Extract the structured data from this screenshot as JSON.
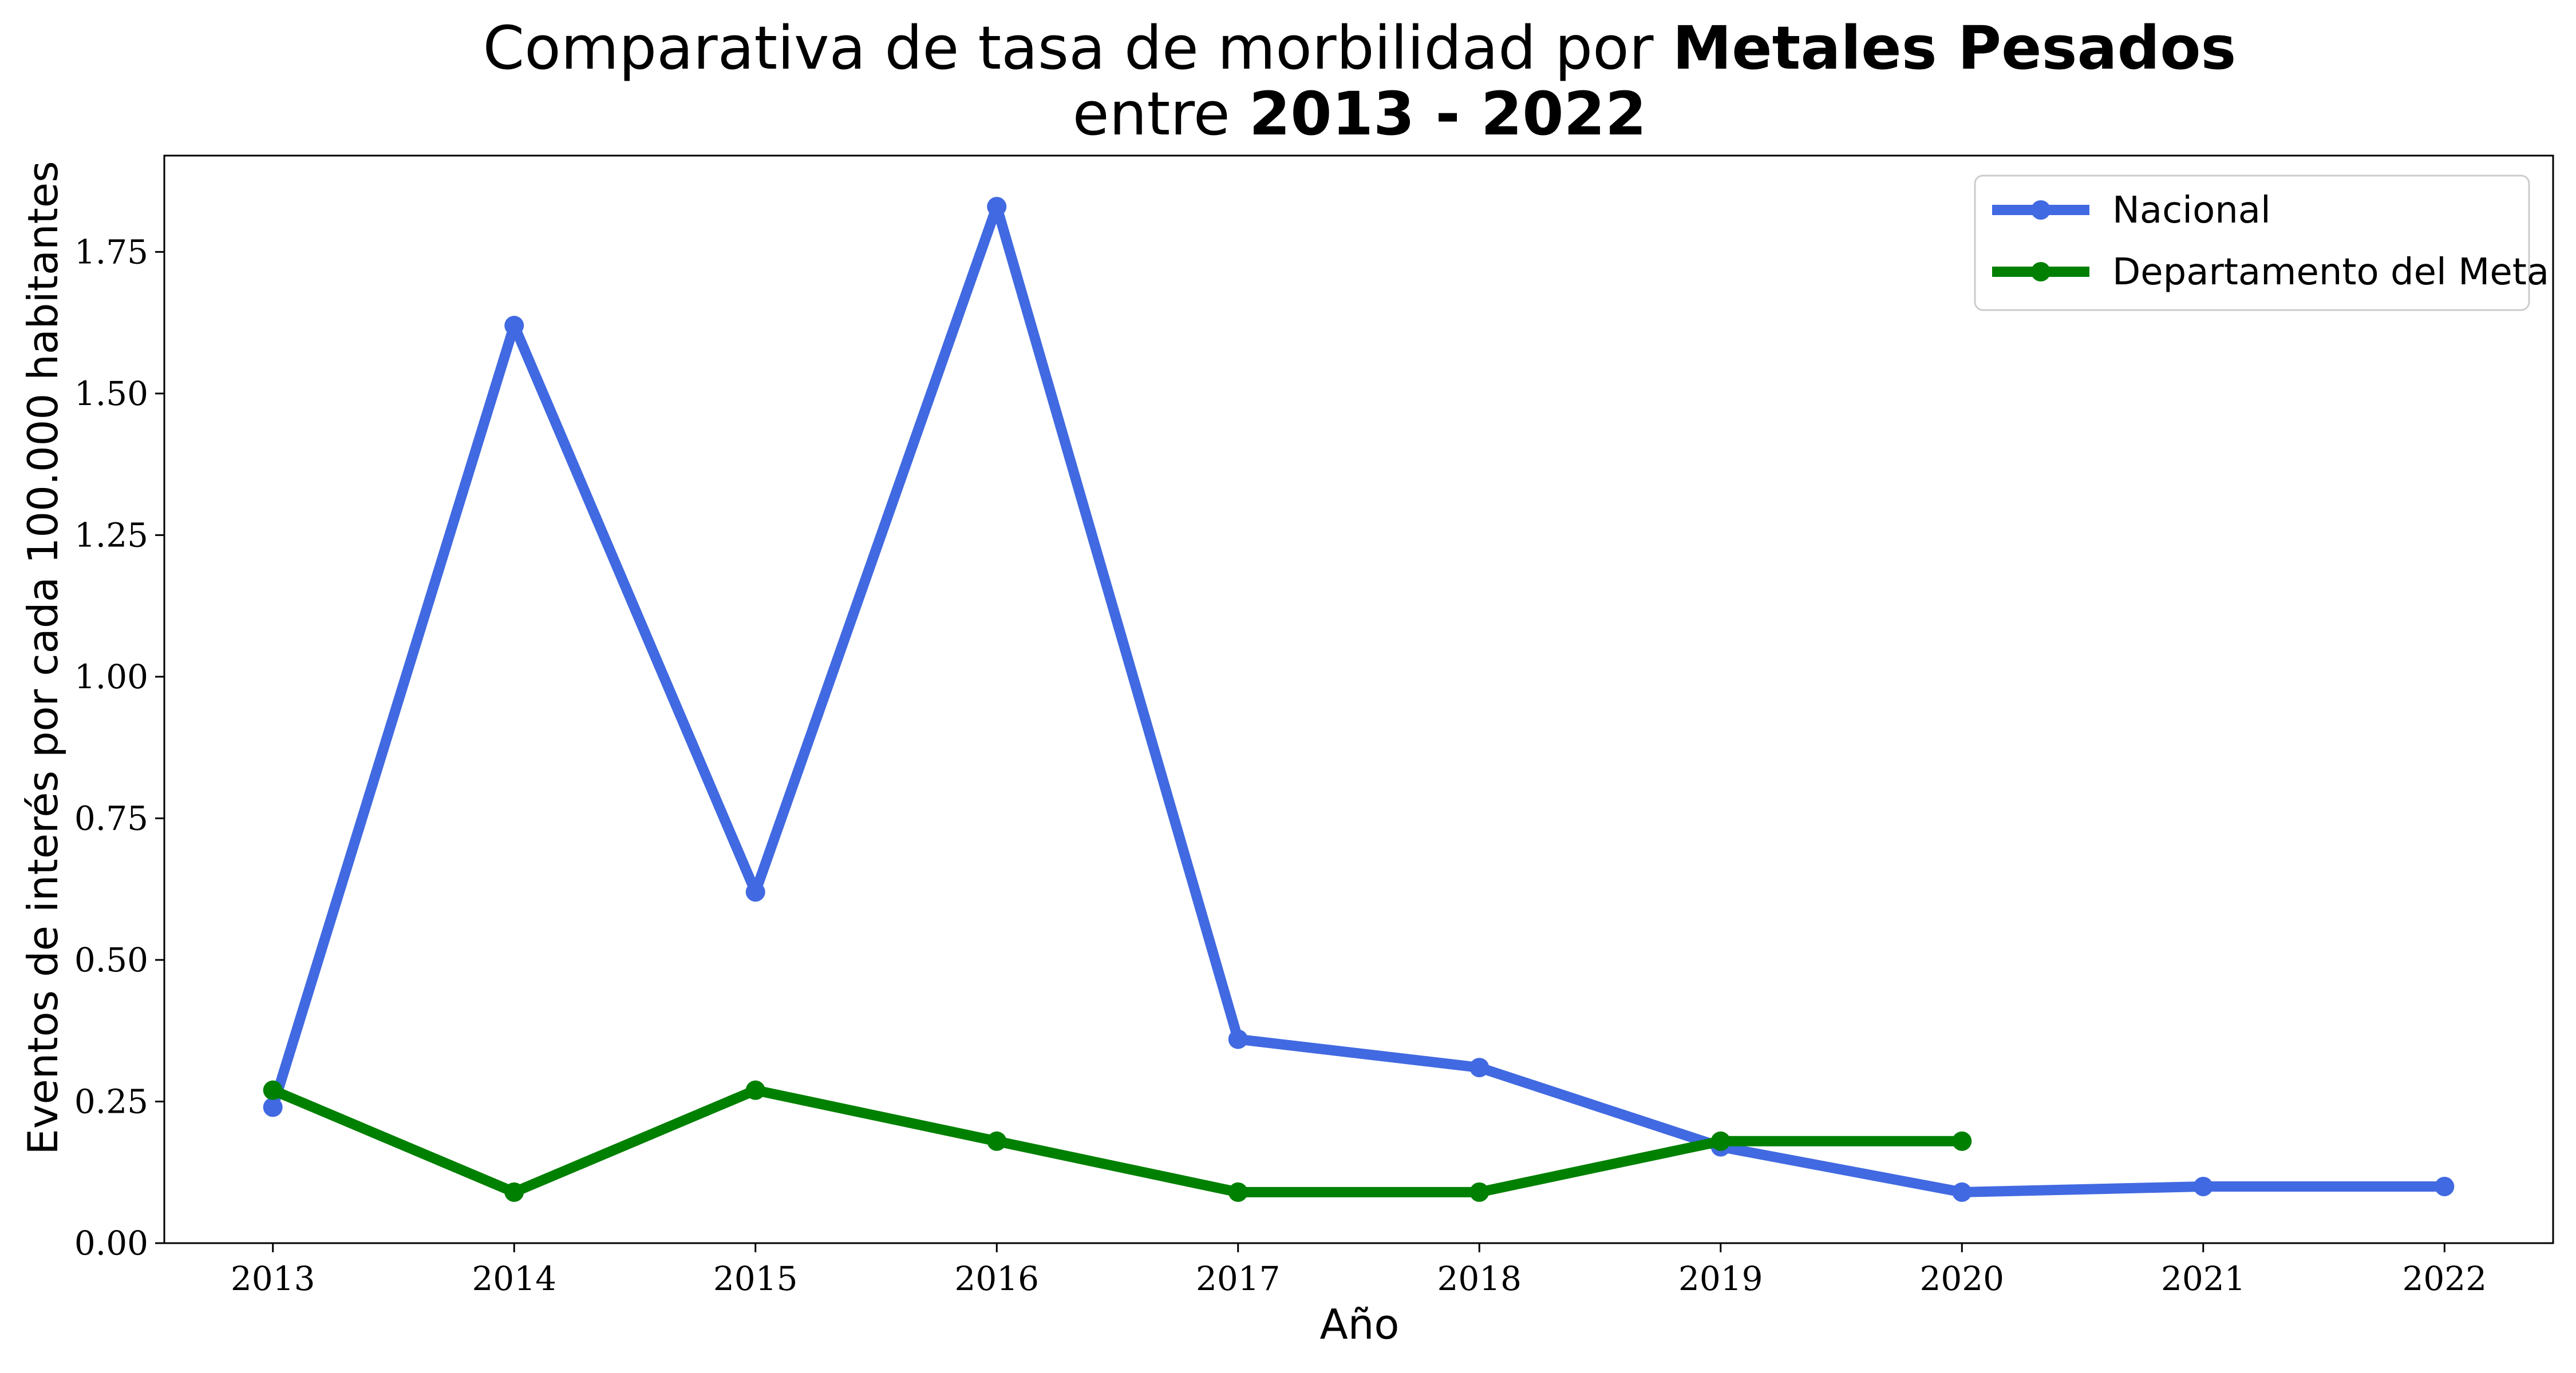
{
  "chart_data": {
    "type": "line",
    "title": {
      "line1_prefix": "Comparativa de tasa de morbilidad por ",
      "line1_bold": "Metales Pesados",
      "line2_prefix": "entre ",
      "line2_bold": "2013 - 2022"
    },
    "xlabel": "Año",
    "ylabel": "Eventos de interés por cada 100.000 habitantes",
    "x": [
      "2013",
      "2014",
      "2015",
      "2016",
      "2017",
      "2018",
      "2019",
      "2020",
      "2021",
      "2022"
    ],
    "ylim": [
      0,
      1.92
    ],
    "yticks": [
      "0.00",
      "0.25",
      "0.50",
      "0.75",
      "1.00",
      "1.25",
      "1.50",
      "1.75"
    ],
    "legend_position": "top-right",
    "grid": false,
    "series": [
      {
        "name": "Nacional",
        "color": "#4169e1",
        "values": [
          0.24,
          1.62,
          0.62,
          1.83,
          0.36,
          0.31,
          0.17,
          0.09,
          0.1,
          0.1
        ]
      },
      {
        "name": "Departamento del Meta",
        "color": "#008000",
        "values": [
          0.27,
          0.09,
          0.27,
          0.18,
          0.09,
          0.09,
          0.18,
          0.18,
          null,
          null
        ]
      }
    ]
  }
}
